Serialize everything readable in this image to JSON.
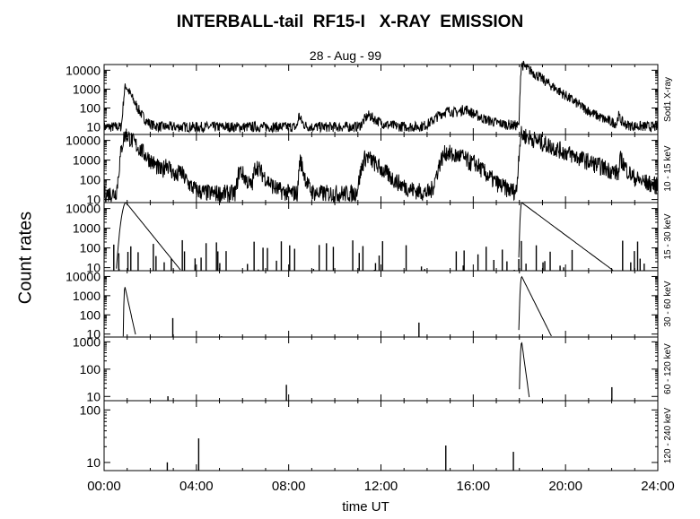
{
  "title": "INTERBALL-tail  RF15-I   X-RAY  EMISSION",
  "subtitle": "28 - Aug - 99",
  "chart_data": {
    "type": "line",
    "title": "INTERBALL-tail  RF15-I   X-RAY  EMISSION",
    "subtitle": "28 - Aug - 99",
    "xlabel": "time UT",
    "ylabel": "Count  rates",
    "x_ticks": [
      "00:00",
      "04:00",
      "08:00",
      "12:00",
      "16:00",
      "20:00",
      "24:00"
    ],
    "xlim": [
      0,
      24
    ],
    "yscale": "log",
    "panels": [
      {
        "label": "Sod1 X-ray",
        "ylim": [
          4,
          20000
        ],
        "y_ticks": [
          "10",
          "100",
          "1000",
          "10000"
        ],
        "baseline": 10,
        "noise": 0.55,
        "features": [
          {
            "t": 0.95,
            "peak": 1500,
            "rise": 0.08,
            "decay": 0.18
          },
          {
            "t": 8.45,
            "peak": 30,
            "rise": 0.05,
            "decay": 0.1
          },
          {
            "t": 11.5,
            "peak": 30,
            "rise": 0.25,
            "decay": 0.35
          },
          {
            "t": 15.0,
            "peak": 60,
            "rise": 0.6,
            "decay": 0.8
          },
          {
            "t": 15.7,
            "peak": 50,
            "rise": 0.3,
            "decay": 0.4
          },
          {
            "t": 18.1,
            "peak": 20000,
            "rise": 0.04,
            "decay": 0.5
          },
          {
            "t": 22.3,
            "peak": 25,
            "rise": 0.05,
            "decay": 0.1
          }
        ]
      },
      {
        "label": "10 - 15 keV",
        "ylim": [
          7,
          20000
        ],
        "y_ticks": [
          "10",
          "100",
          "1000",
          "10000"
        ],
        "baseline": 20,
        "noise": 0.9,
        "features": [
          {
            "t": 0.95,
            "peak": 20000,
            "rise": 0.15,
            "decay": 0.35
          },
          {
            "t": 2.7,
            "peak": 600,
            "rise": 0.1,
            "decay": 0.2
          },
          {
            "t": 3.3,
            "peak": 200,
            "rise": 0.1,
            "decay": 0.2
          },
          {
            "t": 5.9,
            "peak": 300,
            "rise": 0.1,
            "decay": 0.2
          },
          {
            "t": 6.6,
            "peak": 500,
            "rise": 0.1,
            "decay": 0.25
          },
          {
            "t": 8.5,
            "peak": 1000,
            "rise": 0.05,
            "decay": 0.1
          },
          {
            "t": 11.4,
            "peak": 1500,
            "rise": 0.2,
            "decay": 0.4
          },
          {
            "t": 14.9,
            "peak": 2500,
            "rise": 0.3,
            "decay": 0.4
          },
          {
            "t": 15.5,
            "peak": 1000,
            "rise": 0.3,
            "decay": 0.4
          },
          {
            "t": 16.1,
            "peak": 300,
            "rise": 0.2,
            "decay": 0.3
          },
          {
            "t": 18.1,
            "peak": 20000,
            "rise": 0.08,
            "decay": 0.9
          },
          {
            "t": 22.4,
            "peak": 1000,
            "rise": 0.05,
            "decay": 0.15
          }
        ]
      },
      {
        "label": "15 - 30 keV",
        "ylim": [
          7,
          20000
        ],
        "y_ticks": [
          "10",
          "100",
          "1000",
          "10000"
        ],
        "baseline": 0,
        "noise": 0,
        "features": [
          {
            "t": 0.95,
            "peak": 20000,
            "rise": 0.15,
            "decay": 0.3
          },
          {
            "t": 18.1,
            "peak": 20000,
            "rise": 0.05,
            "decay": 0.5
          }
        ]
      },
      {
        "label": "30 - 60 keV",
        "ylim": [
          7,
          20000
        ],
        "y_ticks": [
          "10",
          "100",
          "1000",
          "10000"
        ],
        "baseline": 0,
        "noise": 0,
        "features": [
          {
            "t": 0.9,
            "peak": 3000,
            "rise": 0.03,
            "decay": 0.08
          },
          {
            "t": 18.1,
            "peak": 10000,
            "rise": 0.05,
            "decay": 0.18
          }
        ]
      },
      {
        "label": "60 - 120 keV",
        "ylim": [
          7,
          1500
        ],
        "y_ticks": [
          "10",
          "100",
          "1000"
        ],
        "baseline": 0,
        "noise": 0,
        "features": [
          {
            "t": 18.1,
            "peak": 1000,
            "rise": 0.05,
            "decay": 0.07
          }
        ]
      },
      {
        "label": "120 - 240 keV",
        "ylim": [
          7,
          150
        ],
        "y_ticks": [
          "10",
          "100"
        ],
        "baseline": 0,
        "noise": 0,
        "features": []
      }
    ]
  }
}
